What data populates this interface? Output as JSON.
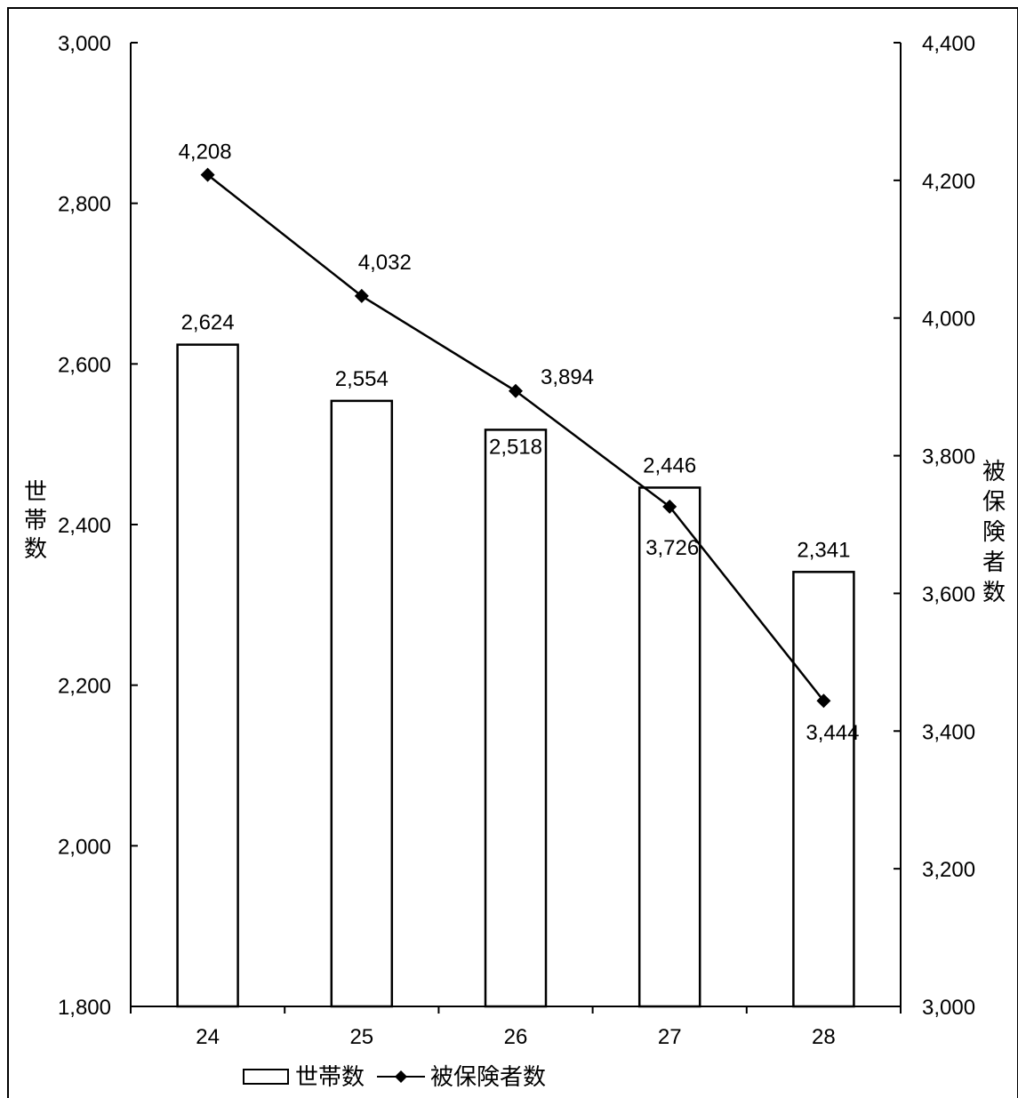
{
  "chart_data": {
    "type": "bar+line",
    "categories": [
      "24",
      "25",
      "26",
      "27",
      "28"
    ],
    "series": [
      {
        "name": "世帯数",
        "type": "bar",
        "axis": "left",
        "values": [
          2624,
          2554,
          2518,
          2446,
          2341
        ],
        "labels": [
          "2,624",
          "2,554",
          "2,518",
          "2,446",
          "2,341"
        ]
      },
      {
        "name": "被保険者数",
        "type": "line",
        "axis": "right",
        "values": [
          4208,
          4032,
          3894,
          3726,
          3444
        ],
        "labels": [
          "4,208",
          "4,032",
          "3,894",
          "3,726",
          "3,444"
        ]
      }
    ],
    "y_left": {
      "label": "世帯数",
      "lim": [
        1800,
        3000
      ],
      "ticks": [
        1800,
        2000,
        2200,
        2400,
        2600,
        2800,
        3000
      ],
      "tick_labels": [
        "1,800",
        "2,000",
        "2,200",
        "2,400",
        "2,600",
        "2,800",
        "3,000"
      ]
    },
    "y_right": {
      "label": "被保険者数",
      "lim": [
        3000,
        4400
      ],
      "ticks": [
        3000,
        3200,
        3400,
        3600,
        3800,
        4000,
        4200,
        4400
      ],
      "tick_labels": [
        "3,000",
        "3,200",
        "3,400",
        "3,600",
        "3,800",
        "4,000",
        "4,200",
        "4,400"
      ]
    },
    "grid": false,
    "legend": {
      "position": "bottom",
      "items": [
        "世帯数",
        "被保険者数"
      ]
    },
    "colors": {
      "bar_fill": "#ffffff",
      "stroke": "#000000",
      "line": "#000000"
    }
  }
}
